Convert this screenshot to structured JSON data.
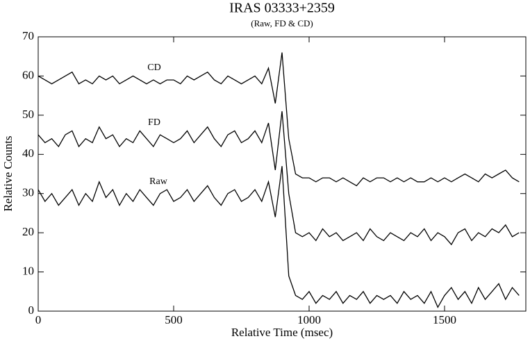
{
  "chart_data": {
    "type": "line",
    "title": "IRAS 03333+2359",
    "subtitle": "(Raw, FD & CD)",
    "x_label": "Relative Time (msec)",
    "y_label": "Relative Counts",
    "x": [
      0,
      25,
      50,
      75,
      100,
      125,
      150,
      175,
      200,
      225,
      250,
      275,
      300,
      325,
      350,
      375,
      400,
      425,
      450,
      475,
      500,
      525,
      550,
      575,
      600,
      625,
      650,
      675,
      700,
      725,
      750,
      775,
      800,
      825,
      850,
      875,
      900,
      925,
      950,
      975,
      1000,
      1025,
      1050,
      1075,
      1100,
      1125,
      1150,
      1175,
      1200,
      1225,
      1250,
      1275,
      1300,
      1325,
      1350,
      1375,
      1400,
      1425,
      1450,
      1475,
      1500,
      1525,
      1550,
      1575,
      1600,
      1625,
      1650,
      1675,
      1700,
      1725,
      1750,
      1775
    ],
    "series": [
      {
        "name": "Raw",
        "color": "#000000",
        "values": [
          31,
          28,
          30,
          27,
          29,
          31,
          27,
          30,
          28,
          33,
          29,
          31,
          27,
          30,
          28,
          31,
          29,
          27,
          30,
          31,
          28,
          29,
          31,
          28,
          30,
          32,
          29,
          27,
          30,
          31,
          28,
          29,
          31,
          28,
          33,
          24,
          37,
          9,
          4,
          3,
          5,
          2,
          4,
          3,
          5,
          2,
          4,
          3,
          5,
          2,
          4,
          3,
          4,
          2,
          5,
          3,
          4,
          2,
          5,
          1,
          4,
          6,
          3,
          5,
          2,
          6,
          3,
          5,
          7,
          3,
          6,
          4
        ]
      },
      {
        "name": "FD",
        "color": "#000000",
        "values": [
          45,
          43,
          44,
          42,
          45,
          46,
          42,
          44,
          43,
          47,
          44,
          45,
          42,
          44,
          43,
          46,
          44,
          42,
          45,
          44,
          43,
          44,
          46,
          43,
          45,
          47,
          44,
          42,
          45,
          46,
          43,
          44,
          46,
          43,
          48,
          36,
          51,
          30,
          20,
          19,
          20,
          18,
          21,
          19,
          20,
          18,
          19,
          20,
          18,
          21,
          19,
          18,
          20,
          19,
          18,
          20,
          19,
          21,
          18,
          20,
          19,
          17,
          20,
          21,
          18,
          20,
          19,
          21,
          20,
          22,
          19,
          20
        ]
      },
      {
        "name": "CD",
        "color": "#000000",
        "values": [
          60,
          59,
          58,
          59,
          60,
          61,
          58,
          59,
          58,
          60,
          59,
          60,
          58,
          59,
          60,
          59,
          58,
          59,
          58,
          59,
          59,
          58,
          60,
          59,
          60,
          61,
          59,
          58,
          60,
          59,
          58,
          59,
          60,
          58,
          62,
          53,
          66,
          44,
          35,
          34,
          34,
          33,
          34,
          34,
          33,
          34,
          33,
          32,
          34,
          33,
          34,
          34,
          33,
          34,
          33,
          34,
          33,
          33,
          34,
          33,
          34,
          33,
          34,
          35,
          34,
          33,
          35,
          34,
          35,
          36,
          34,
          33
        ]
      }
    ],
    "xlim": [
      0,
      1800
    ],
    "xticks": [
      0,
      500,
      1000,
      1500
    ],
    "ylim": [
      0,
      70
    ],
    "yticks": [
      0,
      10,
      20,
      30,
      40,
      50,
      60,
      70
    ]
  }
}
